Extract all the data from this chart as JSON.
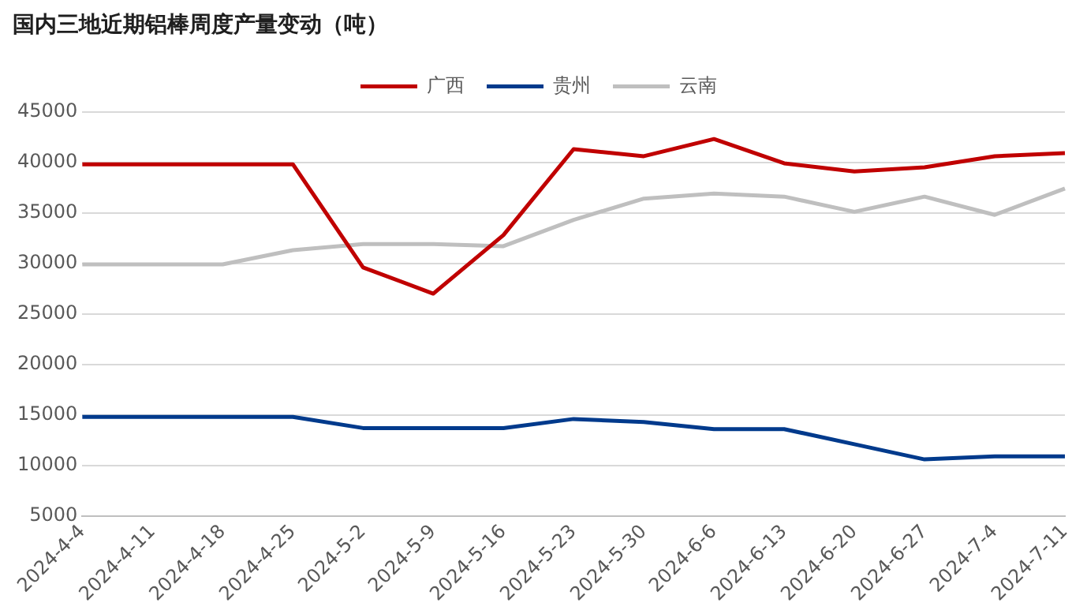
{
  "chart_data": {
    "type": "line",
    "title": "国内三地近期铝棒周度产量变动（吨）",
    "categories": [
      "2024-4-4",
      "2024-4-11",
      "2024-4-18",
      "2024-4-25",
      "2024-5-2",
      "2024-5-9",
      "2024-5-16",
      "2024-5-23",
      "2024-5-30",
      "2024-6-6",
      "2024-6-13",
      "2024-6-20",
      "2024-6-27",
      "2024-7-4",
      "2024-7-11"
    ],
    "series": [
      {
        "name": "广西",
        "color": "#c00000",
        "values": [
          39800,
          39800,
          39800,
          39800,
          29600,
          27000,
          32800,
          41300,
          40600,
          42300,
          39900,
          39100,
          39500,
          40600,
          40900
        ]
      },
      {
        "name": "贵州",
        "color": "#003a8c",
        "values": [
          14800,
          14800,
          14800,
          14800,
          13700,
          13700,
          13700,
          14600,
          14300,
          13600,
          13600,
          12100,
          10600,
          10900,
          10900
        ]
      },
      {
        "name": "云南",
        "color": "#bfbfbf",
        "values": [
          29900,
          29900,
          29900,
          31300,
          31900,
          31900,
          31700,
          34300,
          36400,
          36900,
          36600,
          35100,
          36600,
          34800,
          37400
        ]
      }
    ],
    "ylim": [
      5000,
      45000
    ],
    "yticks": [
      5000,
      10000,
      15000,
      20000,
      25000,
      30000,
      35000,
      40000,
      45000
    ],
    "grid": "y",
    "legend": "top",
    "marker": "none",
    "line_style": "solid"
  }
}
